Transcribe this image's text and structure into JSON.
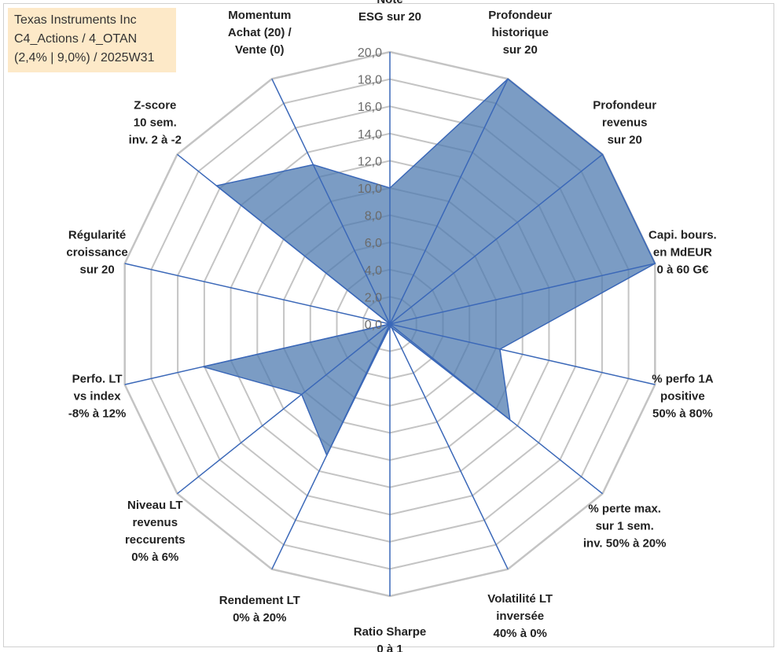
{
  "title_box": {
    "line1": "Texas Instruments Inc",
    "line2": "C4_Actions / 4_OTAN",
    "line3": "(2,4% | 9,0%) / 2025W31"
  },
  "colors": {
    "fill": "#4f7bb0",
    "stroke": "#3b68b8",
    "grid": "#c4c4c4",
    "title_bg": "#fde9c8"
  },
  "chart_data": {
    "type": "radar",
    "grid": true,
    "rlim": [
      0,
      20
    ],
    "tick_step": 2,
    "tick_labels": [
      "0,0",
      "2,0",
      "4,0",
      "6,0",
      "8,0",
      "10,0",
      "12,0",
      "14,0",
      "16,0",
      "18,0",
      "20,0"
    ],
    "axes": [
      {
        "label": [
          "Note",
          "ESG sur 20"
        ],
        "value": 10
      },
      {
        "label": [
          "Profondeur",
          "historique",
          "sur 20"
        ],
        "value": 20
      },
      {
        "label": [
          "Profondeur",
          "revenus",
          "sur 20"
        ],
        "value": 20
      },
      {
        "label": [
          "Capi. bours.",
          "en MdEUR",
          "0 à 60 G€"
        ],
        "value": 20
      },
      {
        "label": [
          "% perfo 1A",
          "positive",
          "50% à 80%"
        ],
        "value": 8.3
      },
      {
        "label": [
          "% perte max.",
          "sur 1 sem.",
          "inv. 50% à 20%"
        ],
        "value": 11.3
      },
      {
        "label": [
          "Volatilité LT",
          "inversée",
          "40% à 0%"
        ],
        "value": 0.3
      },
      {
        "label": [
          "Ratio Sharpe",
          "0 à 1"
        ],
        "value": 0.2
      },
      {
        "label": [
          "Rendement LT",
          "0% à 20%"
        ],
        "value": 10.7
      },
      {
        "label": [
          "Niveau LT",
          "revenus",
          "reccurents",
          "0% à 6%"
        ],
        "value": 8.3
      },
      {
        "label": [
          "Perfo. LT",
          "vs index",
          "-8% à 12%"
        ],
        "value": 14.1
      },
      {
        "label": [
          "Régularité",
          "croissance",
          "sur 20"
        ],
        "value": 0
      },
      {
        "label": [
          "Z-score",
          "10 sem.",
          "inv. 2 à -2"
        ],
        "value": 16.3
      },
      {
        "label": [
          "Momentum",
          "Achat (20) /",
          "Vente (0)"
        ],
        "value": 13.0
      }
    ]
  }
}
